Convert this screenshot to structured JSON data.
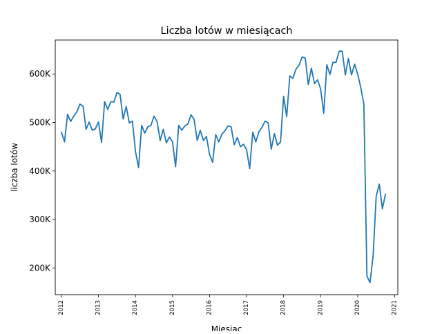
{
  "chart_data": {
    "type": "line",
    "title": "Liczba lotów w miesiącach",
    "xlabel": "Miesiąc",
    "ylabel": "liczba lotów",
    "x_tick_labels": [
      "2012",
      "2013",
      "2014",
      "2015",
      "2016",
      "2017",
      "2018",
      "2019",
      "2020",
      "2021"
    ],
    "y_tick_labels": [
      "200K",
      "300K",
      "400K",
      "500K",
      "600K"
    ],
    "y_ticks": [
      200000,
      300000,
      400000,
      500000,
      600000
    ],
    "xlim": [
      "2011-11",
      "2021-02"
    ],
    "ylim": [
      145000,
      670000
    ],
    "grid": false,
    "series": [
      {
        "color": "#1f77b4",
        "x_start": "2012-01",
        "x_end": "2020-10",
        "frequency": "monthly",
        "values": [
          480000,
          460000,
          517000,
          502000,
          513000,
          522000,
          538000,
          534000,
          486000,
          501000,
          484000,
          487000,
          501000,
          459000,
          543000,
          527000,
          543000,
          542000,
          562000,
          558000,
          507000,
          533000,
          499000,
          503000,
          440000,
          407000,
          494000,
          478000,
          491000,
          494000,
          513000,
          502000,
          463000,
          486000,
          458000,
          470000,
          460000,
          409000,
          494000,
          484000,
          493000,
          497000,
          516000,
          506000,
          463000,
          484000,
          463000,
          471000,
          434000,
          418000,
          475000,
          460000,
          476000,
          483000,
          493000,
          491000,
          454000,
          469000,
          450000,
          455000,
          444000,
          405000,
          480000,
          460000,
          481000,
          490000,
          503000,
          499000,
          445000,
          477000,
          453000,
          460000,
          554000,
          512000,
          596000,
          591000,
          610000,
          618000,
          635000,
          633000,
          578000,
          612000,
          580000,
          588000,
          569000,
          519000,
          619000,
          599000,
          624000,
          624000,
          647000,
          647000,
          598000,
          632000,
          598000,
          620000,
          600000,
          572000,
          538000,
          183000,
          170000,
          225000,
          348000,
          373000,
          322000,
          352000
        ]
      }
    ]
  }
}
